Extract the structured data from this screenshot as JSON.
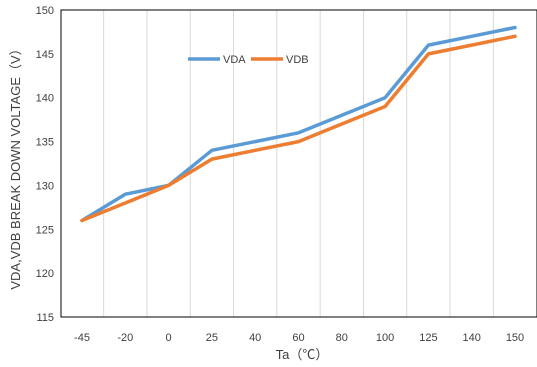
{
  "chart_data": {
    "type": "line",
    "categories": [
      "-45",
      "-20",
      "0",
      "25",
      "40",
      "60",
      "80",
      "100",
      "125",
      "140",
      "150"
    ],
    "series": [
      {
        "name": "VDA",
        "color": "#5b9bd5",
        "values": [
          126,
          129,
          130,
          134,
          135,
          136,
          138,
          140,
          146,
          147,
          148
        ]
      },
      {
        "name": "VDB",
        "color": "#ed7d31",
        "values": [
          126,
          128,
          130,
          133,
          134,
          135,
          137,
          139,
          145,
          146,
          147
        ]
      }
    ],
    "xlabel": "Ta（℃）",
    "ylabel": "VDA,VDB BREAK DOWN VOLTAGE（V）",
    "ylim": [
      115,
      150
    ],
    "yticks": [
      115,
      120,
      125,
      130,
      135,
      140,
      145,
      150
    ],
    "grid": "vertical",
    "legend_position": "top-center"
  }
}
